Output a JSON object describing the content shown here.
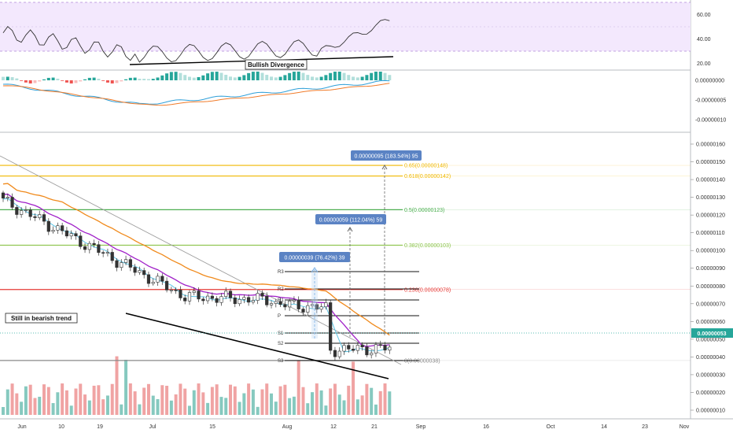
{
  "chart_data": [
    {
      "type": "line",
      "panel": "rsi",
      "y_ticks": [
        "60.00",
        "40.00",
        "20.00"
      ],
      "annotation": "Bullish Divergence"
    },
    {
      "type": "bar",
      "panel": "macd",
      "y_ticks": [
        "0.00000000",
        "-0.00000005",
        "-0.00000010"
      ]
    },
    {
      "type": "candlestick",
      "panel": "price",
      "y_ticks": [
        "0.00000160",
        "0.00000150",
        "0.00000140",
        "0.00000130",
        "0.00000120",
        "0.00000110",
        "0.00000100",
        "0.00000090",
        "0.00000080",
        "0.00000070",
        "0.00000060",
        "0.00000050",
        "0.00000040",
        "0.00000030",
        "0.00000020",
        "0.00000010"
      ],
      "x_ticks": [
        "Jun",
        "10",
        "19",
        "Jul",
        "15",
        "Aug",
        "12",
        "21",
        "Sep",
        "16",
        "Oct",
        "14",
        "23",
        "Nov"
      ],
      "current_price": "0.00000053",
      "fib_levels": [
        {
          "label": "0.65(0.00000148)",
          "value": 1.48e-06,
          "color": "#f0b800"
        },
        {
          "label": "0.618(0.00000142)",
          "value": 1.42e-06,
          "color": "#f0b800"
        },
        {
          "label": "0.5(0.00000123)",
          "value": 1.23e-06,
          "color": "#4caf50"
        },
        {
          "label": "0.382(0.00000103)",
          "value": 1.03e-06,
          "color": "#8bc34a"
        },
        {
          "label": "0.236(0.00000078)",
          "value": 7.8e-07,
          "color": "#e53935"
        },
        {
          "label": "0(0.00000038)",
          "value": 3.8e-07,
          "color": "#888888"
        }
      ],
      "pivot_labels": [
        "R3",
        "R2",
        "R1",
        "P",
        "S1",
        "S2",
        "S3"
      ],
      "targets": [
        {
          "label": "0.00000039 (76.42%) 39"
        },
        {
          "label": "0.00000059 (112.04%) 59"
        },
        {
          "label": "0.00000095 (183.54%) 95"
        }
      ],
      "annotation": "Still in bearish trend"
    }
  ]
}
